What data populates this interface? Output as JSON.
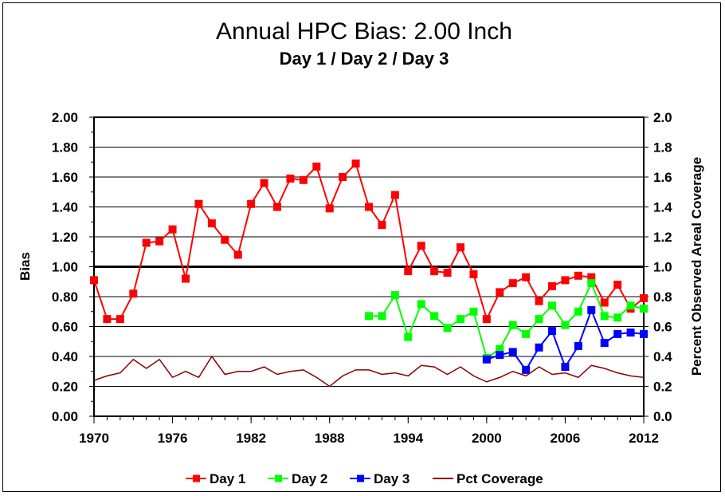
{
  "chart_data": {
    "type": "line",
    "title": "Annual HPC Bias:  2.00 Inch",
    "subtitle": "Day 1 / Day 2 / Day 3",
    "ylabel": "Bias",
    "y2label": "Percent Observed Areal Coverage",
    "xlim": [
      1970,
      2012
    ],
    "ylim": [
      0,
      2
    ],
    "y2lim": [
      0,
      2
    ],
    "x_ticks": [
      "1970",
      "1976",
      "1982",
      "1988",
      "1994",
      "2000",
      "2006",
      "2012"
    ],
    "y_ticks": [
      "0.00",
      "0.20",
      "0.40",
      "0.60",
      "0.80",
      "1.00",
      "1.20",
      "1.40",
      "1.60",
      "1.80",
      "2.00"
    ],
    "y2_ticks": [
      "0.0",
      "0.2",
      "0.4",
      "0.6",
      "0.8",
      "1.0",
      "1.2",
      "1.4",
      "1.6",
      "1.8",
      "2.0"
    ],
    "reference_line": 1.0,
    "grid": "horizontal",
    "legend_position": "bottom",
    "series": [
      {
        "name": "Day 1",
        "color": "#ff0000",
        "marker": "square",
        "x": [
          1970,
          1971,
          1972,
          1973,
          1974,
          1975,
          1976,
          1977,
          1978,
          1979,
          1980,
          1981,
          1982,
          1983,
          1984,
          1985,
          1986,
          1987,
          1988,
          1989,
          1990,
          1991,
          1992,
          1993,
          1994,
          1995,
          1996,
          1997,
          1998,
          1999,
          2000,
          2001,
          2002,
          2003,
          2004,
          2005,
          2006,
          2007,
          2008,
          2009,
          2010,
          2011,
          2012
        ],
        "values": [
          0.91,
          0.65,
          0.65,
          0.82,
          1.16,
          1.17,
          1.25,
          0.92,
          1.42,
          1.29,
          1.18,
          1.08,
          1.42,
          1.56,
          1.4,
          1.59,
          1.58,
          1.67,
          1.39,
          1.6,
          1.69,
          1.4,
          1.28,
          1.48,
          0.97,
          1.14,
          0.97,
          0.96,
          1.13,
          0.95,
          0.65,
          0.83,
          0.89,
          0.93,
          0.77,
          0.87,
          0.91,
          0.94,
          0.93,
          0.76,
          0.88,
          0.72,
          0.79
        ]
      },
      {
        "name": "Day 2",
        "color": "#00ff00",
        "marker": "square",
        "x": [
          1991,
          1992,
          1993,
          1994,
          1995,
          1996,
          1997,
          1998,
          1999,
          2000,
          2001,
          2002,
          2003,
          2004,
          2005,
          2006,
          2007,
          2008,
          2009,
          2010,
          2011,
          2012
        ],
        "values": [
          0.67,
          0.67,
          0.81,
          0.53,
          0.75,
          0.67,
          0.59,
          0.65,
          0.7,
          0.39,
          0.45,
          0.61,
          0.55,
          0.65,
          0.74,
          0.61,
          0.7,
          0.89,
          0.67,
          0.66,
          0.74,
          0.72
        ]
      },
      {
        "name": "Day 3",
        "color": "#0000ff",
        "marker": "square",
        "x": [
          2000,
          2001,
          2002,
          2003,
          2004,
          2005,
          2006,
          2007,
          2008,
          2009,
          2010,
          2011,
          2012
        ],
        "values": [
          0.38,
          0.41,
          0.43,
          0.31,
          0.46,
          0.57,
          0.33,
          0.47,
          0.71,
          0.49,
          0.55,
          0.56,
          0.55
        ]
      },
      {
        "name": "Pct Coverage",
        "color": "#8b0000",
        "marker": "none",
        "axis": "right",
        "x": [
          1970,
          1971,
          1972,
          1973,
          1974,
          1975,
          1976,
          1977,
          1978,
          1979,
          1980,
          1981,
          1982,
          1983,
          1984,
          1985,
          1986,
          1987,
          1988,
          1989,
          1990,
          1991,
          1992,
          1993,
          1994,
          1995,
          1996,
          1997,
          1998,
          1999,
          2000,
          2001,
          2002,
          2003,
          2004,
          2005,
          2006,
          2007,
          2008,
          2009,
          2010,
          2011,
          2012
        ],
        "values": [
          0.24,
          0.27,
          0.29,
          0.38,
          0.32,
          0.38,
          0.26,
          0.3,
          0.26,
          0.4,
          0.28,
          0.3,
          0.3,
          0.33,
          0.28,
          0.3,
          0.31,
          0.26,
          0.2,
          0.27,
          0.31,
          0.31,
          0.28,
          0.29,
          0.27,
          0.34,
          0.33,
          0.28,
          0.33,
          0.27,
          0.23,
          0.26,
          0.3,
          0.27,
          0.33,
          0.28,
          0.29,
          0.26,
          0.34,
          0.32,
          0.29,
          0.27,
          0.26
        ]
      }
    ]
  }
}
